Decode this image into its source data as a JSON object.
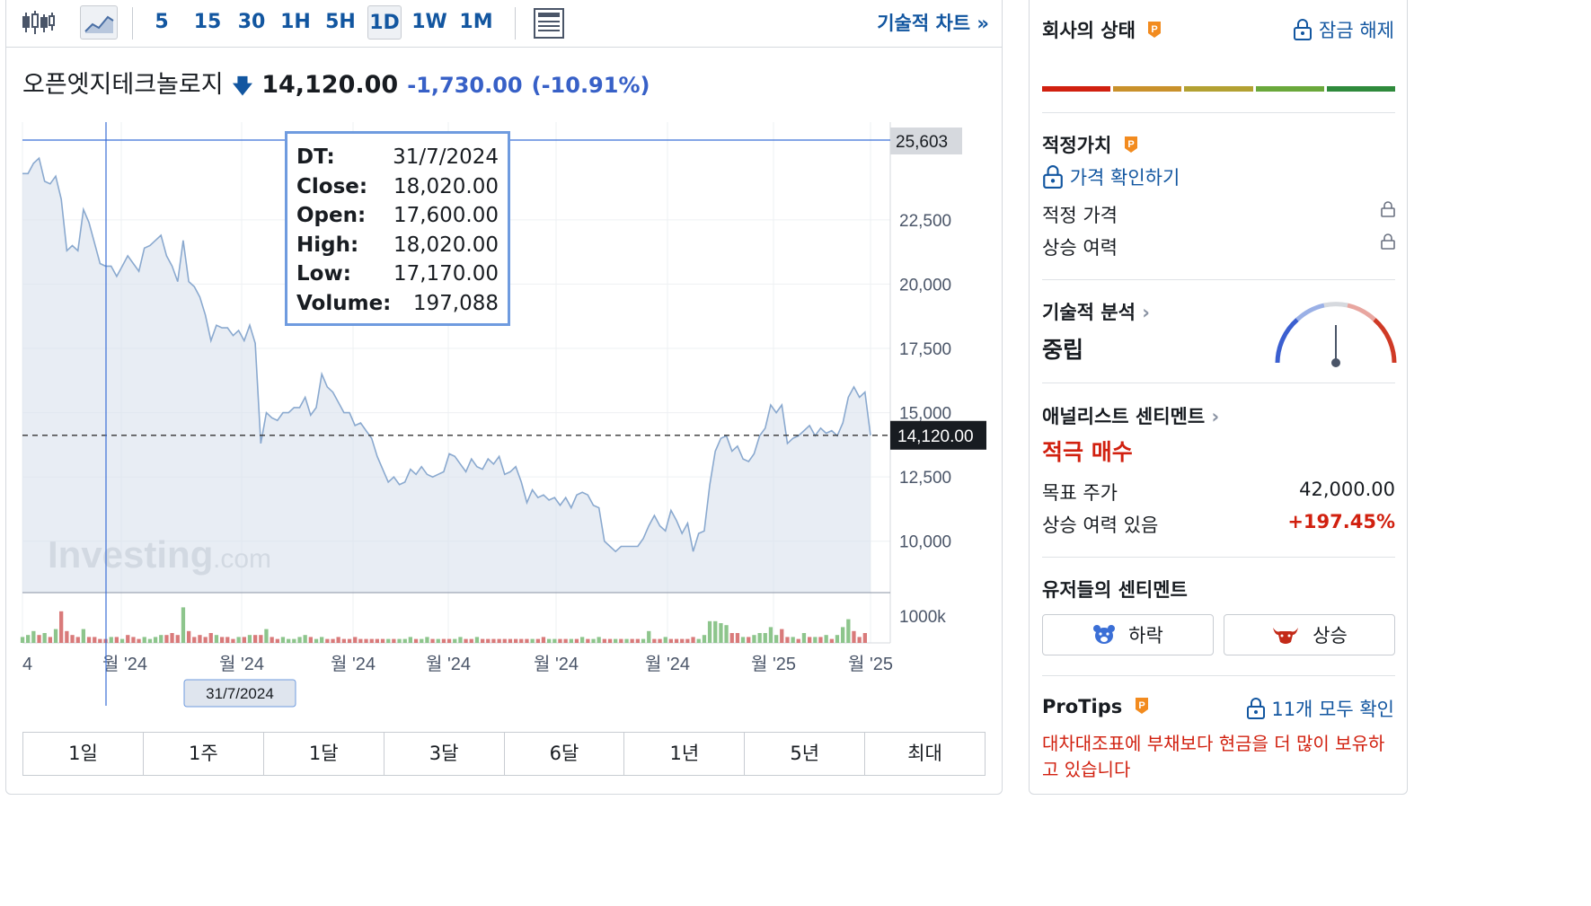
{
  "toolbar": {
    "intervals": [
      "5",
      "15",
      "30",
      "1H",
      "5H",
      "1D",
      "1W",
      "1M"
    ],
    "active_interval": "1D",
    "technical_chart_link": "기술적 차트 »"
  },
  "quote": {
    "name": "오픈엣지테크놀로지",
    "price": "14,120.00",
    "change": "-1,730.00",
    "change_pct": "(-10.91%)"
  },
  "tooltip": {
    "rows": [
      {
        "key": "DT:",
        "value": "31/7/2024"
      },
      {
        "key": "Close:",
        "value": "18,020.00"
      },
      {
        "key": "Open:",
        "value": "17,600.00"
      },
      {
        "key": "High:",
        "value": "18,020.00"
      },
      {
        "key": "Low:",
        "value": "17,170.00"
      },
      {
        "key": "Volume:",
        "value": "197,088"
      }
    ]
  },
  "crosshair": {
    "price_label": "25,603",
    "date_label": "31/7/2024"
  },
  "current_price_label": "14,120.00",
  "watermark": {
    "main": "Investing",
    "suffix": ".com"
  },
  "chart_data": {
    "type": "area",
    "y_ticks": [
      "22,500",
      "20,000",
      "17,500",
      "15,000",
      "12,500",
      "10,000"
    ],
    "y_tick_values": [
      22500,
      20000,
      17500,
      15000,
      12500,
      10000
    ],
    "ylim": [
      8000,
      25603
    ],
    "volume_axis_label": "1000k",
    "x_tick_labels": [
      "4",
      "월 '24",
      "월 '24",
      "월 '24",
      "월 '24",
      "월 '24",
      "월 '24",
      "월 '25",
      "월 '25"
    ],
    "series": [
      {
        "values": [
          24300,
          24300,
          24700,
          24900,
          24000,
          23900,
          24200,
          23300,
          21300,
          21500,
          21300,
          22900,
          22400,
          21600,
          20800,
          20700,
          20700,
          20300,
          20700,
          21100,
          20800,
          20500,
          21400,
          21500,
          21700,
          21900,
          21100,
          20700,
          20100,
          21700,
          20100,
          19900,
          19500,
          18800,
          17800,
          18400,
          18300,
          18300,
          18000,
          18200,
          17800,
          18400,
          17700,
          13800,
          15000,
          14800,
          14700,
          15000,
          15000,
          15200,
          15200,
          15600,
          14900,
          15200,
          16500,
          16000,
          15800,
          15400,
          15000,
          15000,
          14500,
          14600,
          14300,
          14000,
          13300,
          12800,
          12300,
          12500,
          12200,
          12300,
          12800,
          12600,
          12900,
          12600,
          12500,
          12600,
          12700,
          13400,
          13300,
          13000,
          12700,
          13200,
          12900,
          12800,
          13200,
          13000,
          13300,
          12600,
          12700,
          12900,
          12300,
          11500,
          12000,
          11700,
          11800,
          11600,
          11700,
          11400,
          11700,
          11300,
          11800,
          11900,
          11800,
          11400,
          11300,
          10000,
          9800,
          9600,
          9800,
          9800,
          9800,
          9800,
          10100,
          10600,
          11000,
          10600,
          10400,
          11200,
          10800,
          10300,
          10700,
          9600,
          10300,
          10400,
          12200,
          13500,
          14000,
          14100,
          13500,
          13700,
          13200,
          13100,
          13400,
          14100,
          14400,
          15300,
          15000,
          15300,
          13800,
          14000,
          14100,
          14300,
          14500,
          14100,
          14400,
          14200,
          14300,
          14100,
          14600,
          15600,
          16000,
          15600,
          15800,
          14120
        ]
      }
    ],
    "volume": [
      {
        "x": 0,
        "v": 0.3,
        "c": "g"
      },
      {
        "x": 1,
        "v": 0.4,
        "c": "g"
      },
      {
        "x": 2,
        "v": 0.6,
        "c": "g"
      },
      {
        "x": 3,
        "v": 0.4,
        "c": "r"
      },
      {
        "x": 4,
        "v": 0.5,
        "c": "g"
      },
      {
        "x": 5,
        "v": 0.3,
        "c": "r"
      },
      {
        "x": 6,
        "v": 0.7,
        "c": "g"
      },
      {
        "x": 7,
        "v": 1.6,
        "c": "r"
      },
      {
        "x": 8,
        "v": 0.6,
        "c": "r"
      },
      {
        "x": 9,
        "v": 0.4,
        "c": "r"
      },
      {
        "x": 10,
        "v": 0.3,
        "c": "r"
      },
      {
        "x": 11,
        "v": 0.7,
        "c": "g"
      },
      {
        "x": 12,
        "v": 0.3,
        "c": "r"
      },
      {
        "x": 13,
        "v": 0.3,
        "c": "r"
      },
      {
        "x": 14,
        "v": 0.2,
        "c": "r"
      },
      {
        "x": 15,
        "v": 0.2,
        "c": "r"
      },
      {
        "x": 16,
        "v": 0.3,
        "c": "g"
      },
      {
        "x": 17,
        "v": 0.3,
        "c": "r"
      },
      {
        "x": 18,
        "v": 0.2,
        "c": "g"
      },
      {
        "x": 19,
        "v": 0.4,
        "c": "r"
      },
      {
        "x": 20,
        "v": 0.3,
        "c": "r"
      },
      {
        "x": 21,
        "v": 0.2,
        "c": "r"
      },
      {
        "x": 22,
        "v": 0.3,
        "c": "g"
      },
      {
        "x": 23,
        "v": 0.2,
        "c": "g"
      },
      {
        "x": 24,
        "v": 0.3,
        "c": "g"
      },
      {
        "x": 25,
        "v": 0.4,
        "c": "g"
      },
      {
        "x": 26,
        "v": 0.4,
        "c": "r"
      },
      {
        "x": 27,
        "v": 0.5,
        "c": "r"
      },
      {
        "x": 28,
        "v": 0.4,
        "c": "r"
      },
      {
        "x": 29,
        "v": 1.8,
        "c": "g"
      },
      {
        "x": 30,
        "v": 0.6,
        "c": "r"
      },
      {
        "x": 31,
        "v": 0.3,
        "c": "r"
      },
      {
        "x": 32,
        "v": 0.4,
        "c": "r"
      },
      {
        "x": 33,
        "v": 0.3,
        "c": "r"
      },
      {
        "x": 34,
        "v": 0.5,
        "c": "r"
      },
      {
        "x": 35,
        "v": 0.4,
        "c": "g"
      },
      {
        "x": 36,
        "v": 0.3,
        "c": "r"
      },
      {
        "x": 37,
        "v": 0.3,
        "c": "r"
      },
      {
        "x": 38,
        "v": 0.2,
        "c": "r"
      },
      {
        "x": 39,
        "v": 0.3,
        "c": "g"
      },
      {
        "x": 40,
        "v": 0.3,
        "c": "r"
      },
      {
        "x": 41,
        "v": 0.4,
        "c": "g"
      },
      {
        "x": 42,
        "v": 0.4,
        "c": "r"
      },
      {
        "x": 43,
        "v": 0.4,
        "c": "r"
      },
      {
        "x": 44,
        "v": 0.7,
        "c": "g"
      },
      {
        "x": 45,
        "v": 0.3,
        "c": "r"
      },
      {
        "x": 46,
        "v": 0.2,
        "c": "r"
      },
      {
        "x": 47,
        "v": 0.3,
        "c": "g"
      },
      {
        "x": 48,
        "v": 0.2,
        "c": "g"
      },
      {
        "x": 49,
        "v": 0.2,
        "c": "g"
      },
      {
        "x": 50,
        "v": 0.3,
        "c": "g"
      },
      {
        "x": 51,
        "v": 0.4,
        "c": "g"
      },
      {
        "x": 52,
        "v": 0.3,
        "c": "r"
      },
      {
        "x": 53,
        "v": 0.2,
        "c": "g"
      },
      {
        "x": 54,
        "v": 0.3,
        "c": "g"
      },
      {
        "x": 55,
        "v": 0.2,
        "c": "r"
      },
      {
        "x": 56,
        "v": 0.2,
        "c": "r"
      },
      {
        "x": 57,
        "v": 0.3,
        "c": "r"
      },
      {
        "x": 58,
        "v": 0.2,
        "c": "r"
      },
      {
        "x": 59,
        "v": 0.2,
        "c": "r"
      },
      {
        "x": 60,
        "v": 0.3,
        "c": "r"
      },
      {
        "x": 61,
        "v": 0.2,
        "c": "r"
      },
      {
        "x": 62,
        "v": 0.2,
        "c": "r"
      },
      {
        "x": 63,
        "v": 0.2,
        "c": "r"
      },
      {
        "x": 64,
        "v": 0.2,
        "c": "r"
      },
      {
        "x": 65,
        "v": 0.2,
        "c": "r"
      },
      {
        "x": 66,
        "v": 0.2,
        "c": "g"
      },
      {
        "x": 67,
        "v": 0.2,
        "c": "r"
      },
      {
        "x": 68,
        "v": 0.2,
        "c": "g"
      },
      {
        "x": 69,
        "v": 0.2,
        "c": "g"
      },
      {
        "x": 70,
        "v": 0.3,
        "c": "g"
      },
      {
        "x": 71,
        "v": 0.2,
        "c": "r"
      },
      {
        "x": 72,
        "v": 0.2,
        "c": "g"
      },
      {
        "x": 73,
        "v": 0.3,
        "c": "g"
      },
      {
        "x": 74,
        "v": 0.2,
        "c": "r"
      },
      {
        "x": 75,
        "v": 0.2,
        "c": "g"
      },
      {
        "x": 76,
        "v": 0.2,
        "c": "r"
      },
      {
        "x": 77,
        "v": 0.2,
        "c": "r"
      },
      {
        "x": 78,
        "v": 0.2,
        "c": "g"
      },
      {
        "x": 79,
        "v": 0.3,
        "c": "g"
      },
      {
        "x": 80,
        "v": 0.2,
        "c": "r"
      },
      {
        "x": 81,
        "v": 0.2,
        "c": "r"
      },
      {
        "x": 82,
        "v": 0.3,
        "c": "g"
      },
      {
        "x": 83,
        "v": 0.2,
        "c": "r"
      },
      {
        "x": 84,
        "v": 0.2,
        "c": "r"
      },
      {
        "x": 85,
        "v": 0.2,
        "c": "r"
      },
      {
        "x": 86,
        "v": 0.2,
        "c": "r"
      },
      {
        "x": 87,
        "v": 0.2,
        "c": "r"
      },
      {
        "x": 88,
        "v": 0.2,
        "c": "r"
      },
      {
        "x": 89,
        "v": 0.2,
        "c": "r"
      },
      {
        "x": 90,
        "v": 0.2,
        "c": "r"
      },
      {
        "x": 91,
        "v": 0.2,
        "c": "r"
      },
      {
        "x": 92,
        "v": 0.2,
        "c": "g"
      },
      {
        "x": 93,
        "v": 0.2,
        "c": "r"
      },
      {
        "x": 94,
        "v": 0.3,
        "c": "r"
      },
      {
        "x": 95,
        "v": 0.2,
        "c": "g"
      },
      {
        "x": 96,
        "v": 0.2,
        "c": "g"
      },
      {
        "x": 97,
        "v": 0.2,
        "c": "r"
      },
      {
        "x": 98,
        "v": 0.2,
        "c": "r"
      },
      {
        "x": 99,
        "v": 0.2,
        "c": "g"
      },
      {
        "x": 100,
        "v": 0.2,
        "c": "r"
      },
      {
        "x": 101,
        "v": 0.3,
        "c": "g"
      },
      {
        "x": 102,
        "v": 0.2,
        "c": "r"
      },
      {
        "x": 103,
        "v": 0.2,
        "c": "g"
      },
      {
        "x": 104,
        "v": 0.3,
        "c": "g"
      },
      {
        "x": 105,
        "v": 0.2,
        "c": "r"
      },
      {
        "x": 106,
        "v": 0.2,
        "c": "r"
      },
      {
        "x": 107,
        "v": 0.2,
        "c": "g"
      },
      {
        "x": 108,
        "v": 0.2,
        "c": "r"
      },
      {
        "x": 109,
        "v": 0.2,
        "c": "g"
      },
      {
        "x": 110,
        "v": 0.2,
        "c": "r"
      },
      {
        "x": 111,
        "v": 0.2,
        "c": "r"
      },
      {
        "x": 112,
        "v": 0.2,
        "c": "g"
      },
      {
        "x": 113,
        "v": 0.6,
        "c": "g"
      },
      {
        "x": 114,
        "v": 0.2,
        "c": "r"
      },
      {
        "x": 115,
        "v": 0.2,
        "c": "r"
      },
      {
        "x": 116,
        "v": 0.3,
        "c": "g"
      },
      {
        "x": 117,
        "v": 0.2,
        "c": "r"
      },
      {
        "x": 118,
        "v": 0.2,
        "c": "r"
      },
      {
        "x": 119,
        "v": 0.2,
        "c": "r"
      },
      {
        "x": 120,
        "v": 0.2,
        "c": "r"
      },
      {
        "x": 121,
        "v": 0.3,
        "c": "r"
      },
      {
        "x": 122,
        "v": 0.2,
        "c": "g"
      },
      {
        "x": 123,
        "v": 0.4,
        "c": "g"
      },
      {
        "x": 124,
        "v": 1.1,
        "c": "g"
      },
      {
        "x": 125,
        "v": 1.1,
        "c": "g"
      },
      {
        "x": 126,
        "v": 1.0,
        "c": "g"
      },
      {
        "x": 127,
        "v": 0.9,
        "c": "g"
      },
      {
        "x": 128,
        "v": 0.5,
        "c": "r"
      },
      {
        "x": 129,
        "v": 0.5,
        "c": "r"
      },
      {
        "x": 130,
        "v": 0.3,
        "c": "g"
      },
      {
        "x": 131,
        "v": 0.3,
        "c": "r"
      },
      {
        "x": 132,
        "v": 0.4,
        "c": "g"
      },
      {
        "x": 133,
        "v": 0.5,
        "c": "g"
      },
      {
        "x": 134,
        "v": 0.5,
        "c": "g"
      },
      {
        "x": 135,
        "v": 0.8,
        "c": "g"
      },
      {
        "x": 136,
        "v": 0.4,
        "c": "g"
      },
      {
        "x": 137,
        "v": 0.7,
        "c": "r"
      },
      {
        "x": 138,
        "v": 0.3,
        "c": "r"
      },
      {
        "x": 139,
        "v": 0.3,
        "c": "g"
      },
      {
        "x": 140,
        "v": 0.2,
        "c": "r"
      },
      {
        "x": 141,
        "v": 0.5,
        "c": "g"
      },
      {
        "x": 142,
        "v": 0.3,
        "c": "r"
      },
      {
        "x": 143,
        "v": 0.3,
        "c": "g"
      },
      {
        "x": 144,
        "v": 0.3,
        "c": "r"
      },
      {
        "x": 145,
        "v": 0.4,
        "c": "g"
      },
      {
        "x": 146,
        "v": 0.2,
        "c": "r"
      },
      {
        "x": 147,
        "v": 0.4,
        "c": "g"
      },
      {
        "x": 148,
        "v": 0.8,
        "c": "g"
      },
      {
        "x": 149,
        "v": 1.2,
        "c": "g"
      },
      {
        "x": 150,
        "v": 0.6,
        "c": "r"
      },
      {
        "x": 151,
        "v": 0.3,
        "c": "r"
      },
      {
        "x": 152,
        "v": 0.5,
        "c": "r"
      }
    ],
    "ylabel": "",
    "xlabel": ""
  },
  "range_tabs": [
    "1일",
    "1주",
    "1달",
    "3달",
    "6달",
    "1년",
    "5년",
    "최대"
  ],
  "side": {
    "company_status": {
      "title": "회사의 상태",
      "unlock": "잠금 해제",
      "bar_colors": [
        "#d1200f",
        "#c9912b",
        "#b3a132",
        "#6aa83b",
        "#2f8a3c"
      ]
    },
    "fair_value": {
      "title": "적정가치",
      "check_price": "가격 확인하기",
      "rows": [
        {
          "label": "적정 가격"
        },
        {
          "label": "상승 여력"
        }
      ]
    },
    "technical": {
      "title": "기술적 분석",
      "value": "중립"
    },
    "analyst": {
      "title": "애널리스트 센티멘트",
      "rating": "적극 매수",
      "rows": [
        {
          "label": "목표 주가",
          "value": "42,000.00"
        },
        {
          "label": "상승 여력 있음",
          "value": "+197.45%"
        }
      ]
    },
    "user_sentiment": {
      "title": "유저들의 센티멘트",
      "bearish": "하락",
      "bullish": "상승"
    },
    "protips": {
      "title": "ProTips",
      "link": "11개 모두 확인",
      "tip": "대차대조표에 부채보다 현금을 더 많이 보유하고 있습니다"
    }
  }
}
